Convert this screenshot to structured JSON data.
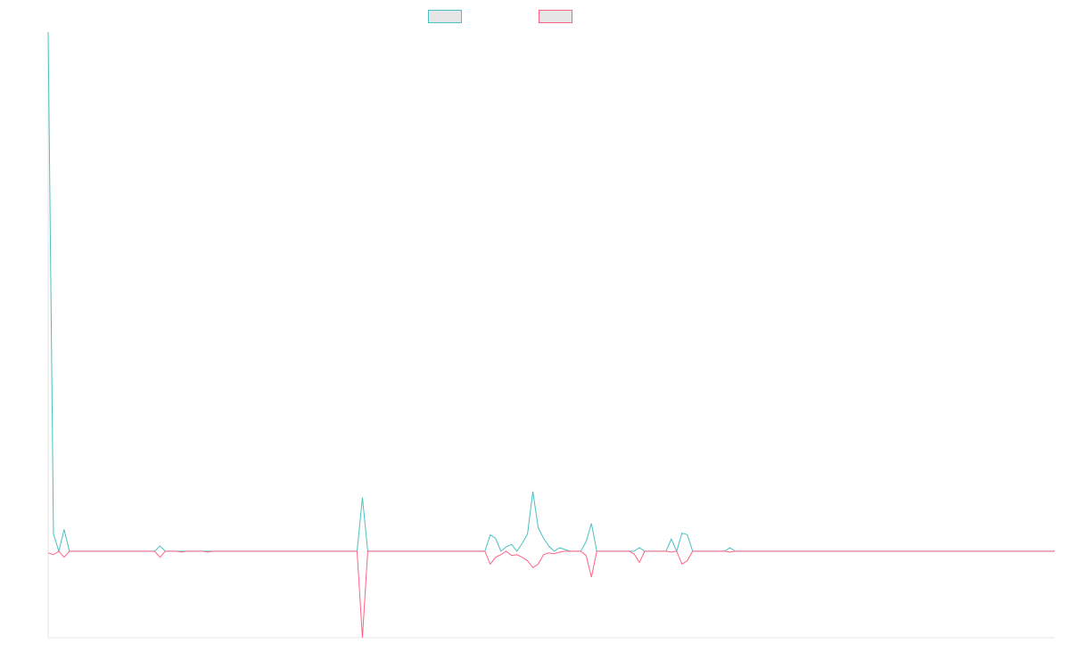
{
  "chart_data": {
    "type": "line",
    "title": "",
    "xlabel": "",
    "ylabel": "",
    "grid": false,
    "legend_position": "top-center",
    "x_count": 190,
    "ylim": [
      -10,
      60
    ],
    "series": [
      {
        "color": "#4bc0c0",
        "spikes": [
          [
            0,
            60
          ],
          [
            1,
            2
          ],
          [
            3,
            2.5
          ],
          [
            21,
            0.6
          ],
          [
            59,
            6.2
          ],
          [
            83,
            1.9
          ],
          [
            84,
            1.5
          ],
          [
            86,
            0.5
          ],
          [
            87,
            0.8
          ],
          [
            89,
            0.9
          ],
          [
            90,
            2
          ],
          [
            91,
            6.9
          ],
          [
            92,
            2.7
          ],
          [
            93,
            1.5
          ],
          [
            94,
            0.6
          ],
          [
            96,
            0.4
          ],
          [
            97,
            0.2
          ],
          [
            101,
            1.1
          ],
          [
            102,
            3.2
          ],
          [
            111,
            0.4
          ],
          [
            117,
            1.4
          ],
          [
            119,
            2.1
          ],
          [
            120,
            1.9
          ],
          [
            128,
            0.4
          ]
        ]
      },
      {
        "color": "#ff6384",
        "spikes": [
          [
            0,
            -0.2
          ],
          [
            1,
            -0.4
          ],
          [
            3,
            -0.7
          ],
          [
            21,
            -0.7
          ],
          [
            25,
            -0.1
          ],
          [
            30,
            -0.1
          ],
          [
            59,
            -10
          ],
          [
            83,
            -1.5
          ],
          [
            84,
            -0.7
          ],
          [
            85,
            -0.4
          ],
          [
            87,
            -0.5
          ],
          [
            88,
            -0.4
          ],
          [
            89,
            -0.7
          ],
          [
            90,
            -1.1
          ],
          [
            91,
            -1.9
          ],
          [
            92,
            -1.5
          ],
          [
            93,
            -0.4
          ],
          [
            94,
            -0.2
          ],
          [
            95,
            -0.3
          ],
          [
            96,
            -0.1
          ],
          [
            101,
            -0.5
          ],
          [
            102,
            -3
          ],
          [
            110,
            -0.3
          ],
          [
            111,
            -1.3
          ],
          [
            117,
            -0.1
          ],
          [
            119,
            -1.5
          ],
          [
            120,
            -1.1
          ],
          [
            128,
            -0.1
          ]
        ]
      }
    ]
  }
}
